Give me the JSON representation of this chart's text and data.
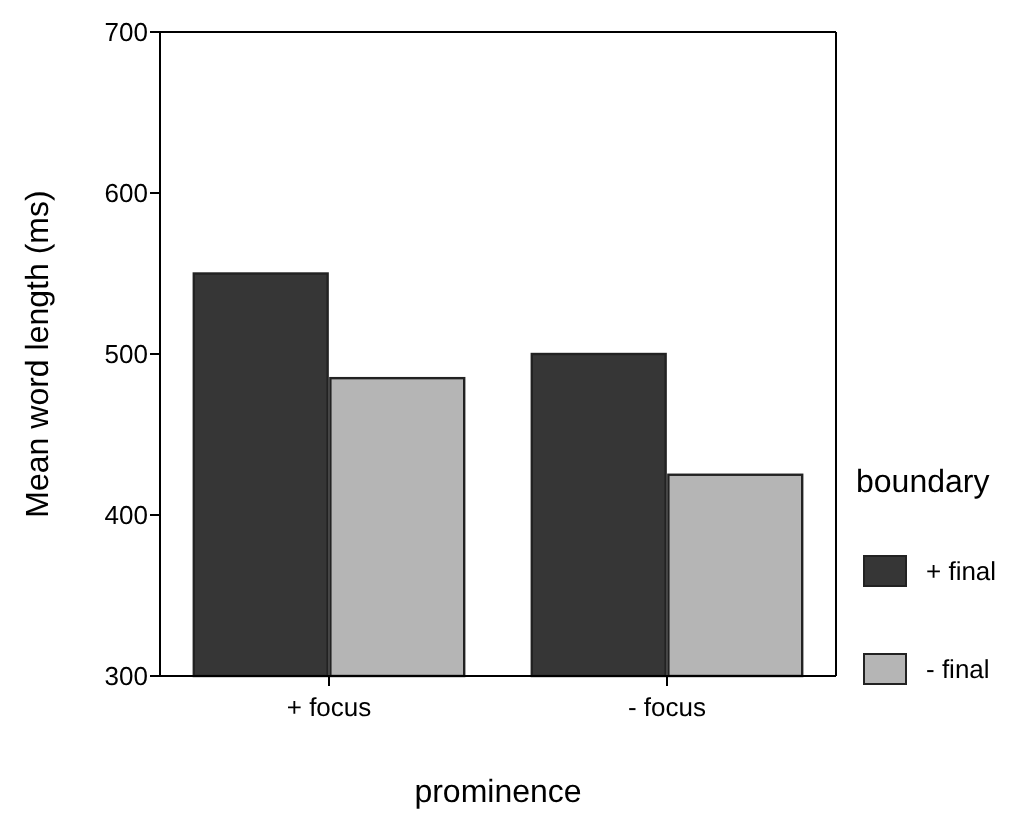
{
  "chart_data": {
    "type": "bar",
    "xlabel": "prominence",
    "ylabel": "Mean word length (ms)",
    "legend_title": "boundary",
    "legend": "right",
    "categories": [
      "+ focus",
      "- focus"
    ],
    "series": [
      {
        "name": "+ final",
        "color": "#363636",
        "values": [
          550,
          500
        ]
      },
      {
        "name": "- final",
        "color": "#b5b5b5",
        "values": [
          485,
          425
        ]
      }
    ],
    "ylim": [
      300,
      700
    ],
    "yticks": [
      300,
      400,
      500,
      600,
      700
    ]
  }
}
